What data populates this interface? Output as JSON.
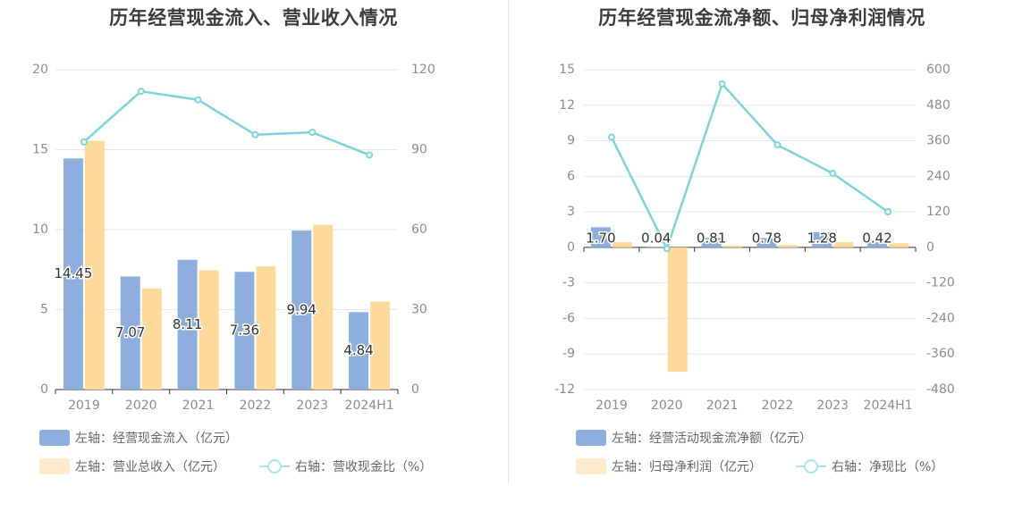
{
  "colors": {
    "bar_a": "#8eaedd",
    "bar_b": "#fdd99b",
    "bar_b_legend": "#ffeccc",
    "line": "#7dd3d7",
    "line_legend": "#a9e4e6",
    "grid": "#e3e6f3",
    "axis": "#333333",
    "tick_text": "#8c8c8c",
    "label_text": "#333333"
  },
  "chart_data": [
    {
      "type": "bar",
      "title": "历年经营现金流入、营业收入情况",
      "categories": [
        "2019",
        "2020",
        "2021",
        "2022",
        "2023",
        "2024H1"
      ],
      "left_axis": {
        "ylim": [
          0,
          20
        ],
        "ticks": [
          "0",
          "5",
          "10",
          "15",
          "20"
        ]
      },
      "right_axis": {
        "ylim": [
          0,
          120
        ],
        "ticks": [
          "0",
          "30",
          "60",
          "90",
          "120"
        ]
      },
      "series": [
        {
          "name": "左轴：经营现金流入（亿元）",
          "axis": "left",
          "kind": "bar",
          "values": [
            14.45,
            7.07,
            8.11,
            7.36,
            9.94,
            4.84
          ],
          "labels": [
            "14.45",
            "7.07",
            "8.11",
            "7.36",
            "9.94",
            "4.84"
          ]
        },
        {
          "name": "左轴：营业总收入（亿元）",
          "axis": "left",
          "kind": "bar",
          "values": [
            15.55,
            6.32,
            7.46,
            7.7,
            10.3,
            5.5
          ]
        },
        {
          "name": "右轴：营收现金比（%）",
          "axis": "right",
          "kind": "line",
          "values": [
            92.9,
            111.9,
            108.7,
            95.6,
            96.5,
            88.0
          ]
        }
      ],
      "legend": [
        {
          "label": "左轴：经营现金流入（亿元）",
          "kind": "bar_a"
        },
        {
          "label": "左轴：营业总收入（亿元）",
          "kind": "bar_b"
        },
        {
          "label": "右轴：营收现金比（%）",
          "kind": "line"
        }
      ]
    },
    {
      "type": "bar",
      "title": "历年经营现金流净额、归母净利润情况",
      "categories": [
        "2019",
        "2020",
        "2021",
        "2022",
        "2023",
        "2024H1"
      ],
      "left_axis": {
        "ylim": [
          -12,
          15
        ],
        "ticks": [
          "-12",
          "-9",
          "-6",
          "-3",
          "0",
          "3",
          "6",
          "9",
          "12",
          "15"
        ]
      },
      "right_axis": {
        "ylim": [
          -480,
          600
        ],
        "ticks": [
          "-480",
          "-360",
          "-240",
          "-120",
          "0",
          "120",
          "240",
          "360",
          "480",
          "600"
        ]
      },
      "series": [
        {
          "name": "左轴：经营活动现金流净额（亿元）",
          "axis": "left",
          "kind": "bar",
          "values": [
            1.7,
            0.04,
            0.81,
            0.78,
            1.28,
            0.42
          ],
          "labels": [
            "1.70",
            "0.04",
            "0.81",
            "0.78",
            "1.28",
            "0.42"
          ]
        },
        {
          "name": "左轴：归母净利润（亿元）",
          "axis": "left",
          "kind": "bar",
          "values": [
            0.45,
            -10.5,
            0.15,
            0.2,
            0.45,
            0.35
          ]
        },
        {
          "name": "右轴：净现比（%）",
          "axis": "right",
          "kind": "line",
          "values": [
            372,
            -4,
            552,
            346,
            250,
            120
          ]
        }
      ],
      "legend": [
        {
          "label": "左轴：经营活动现金流净额（亿元）",
          "kind": "bar_a"
        },
        {
          "label": "左轴：归母净利润（亿元）",
          "kind": "bar_b"
        },
        {
          "label": "右轴：净现比（%）",
          "kind": "line"
        }
      ]
    }
  ]
}
